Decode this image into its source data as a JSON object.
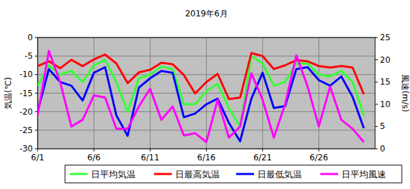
{
  "chart_data": {
    "type": "line",
    "title": "2019年6月",
    "y_label": "気温(℃)",
    "y2_label": "風速(m/s)",
    "x": [
      1,
      2,
      3,
      4,
      5,
      6,
      7,
      8,
      9,
      10,
      11,
      12,
      13,
      14,
      15,
      16,
      17,
      18,
      19,
      20,
      21,
      22,
      23,
      24,
      25,
      26,
      27,
      28,
      29,
      30
    ],
    "xlim": [
      1,
      31
    ],
    "xticks": [
      {
        "value": 1,
        "label": "6/1"
      },
      {
        "value": 6,
        "label": "6/6"
      },
      {
        "value": 11,
        "label": "6/11"
      },
      {
        "value": 16,
        "label": "6/16"
      },
      {
        "value": 21,
        "label": "6/21"
      },
      {
        "value": 26,
        "label": "6/26"
      }
    ],
    "ylim": [
      -30,
      0
    ],
    "yticks": [
      -30,
      -25,
      -20,
      -15,
      -10,
      -5,
      0
    ],
    "y2lim": [
      0,
      25
    ],
    "y2ticks": [
      0,
      5,
      10,
      15,
      20,
      25
    ],
    "grid": true,
    "legend": "bottom",
    "series": [
      {
        "name": "日平均気温",
        "color": "#33ff33",
        "values": [
          -13,
          -7.5,
          -10,
          -9,
          -12,
          -7.5,
          -6,
          -12,
          -20,
          -11,
          -10,
          -7.8,
          -8.5,
          -18,
          -18,
          -14.5,
          -12.5,
          -19,
          -24,
          -5,
          -7,
          -13,
          -12,
          -7,
          -7,
          -10,
          -10.5,
          -9,
          -12,
          -21
        ]
      },
      {
        "name": "日最高気温",
        "color": "#ff0000",
        "values": [
          -7.7,
          -6.4,
          -8.3,
          -6,
          -7.7,
          -5.9,
          -4.6,
          -7,
          -12.3,
          -9.4,
          -8.7,
          -6.8,
          -7.2,
          -10.1,
          -15.1,
          -12,
          -9.8,
          -16.6,
          -16.2,
          -4.2,
          -5,
          -8.5,
          -7.5,
          -6.1,
          -6.4,
          -7.7,
          -8.1,
          -7.7,
          -8.1,
          -15.3
        ]
      },
      {
        "name": "日最低気温",
        "color": "#0000ff",
        "values": [
          -20,
          -8.5,
          -12,
          -13,
          -17,
          -9.5,
          -8,
          -21,
          -26.5,
          -13.5,
          -11,
          -9,
          -9.5,
          -21.5,
          -20.5,
          -18,
          -16.5,
          -23,
          -28,
          -16.5,
          -9.5,
          -19,
          -18.5,
          -8.5,
          -8,
          -11.5,
          -13,
          -10.5,
          -16,
          -24.5
        ]
      },
      {
        "name": "日平均風速",
        "color": "#ff00ff",
        "axis": "y2",
        "values": [
          7.5,
          22,
          15,
          5,
          6.5,
          12,
          11.5,
          4.5,
          4.5,
          9.5,
          13.5,
          6.5,
          9.5,
          3,
          3.5,
          1.5,
          11,
          2.5,
          5,
          17,
          11,
          2.5,
          10,
          21,
          14,
          5,
          14,
          6.5,
          4.5,
          1.5
        ]
      }
    ]
  }
}
